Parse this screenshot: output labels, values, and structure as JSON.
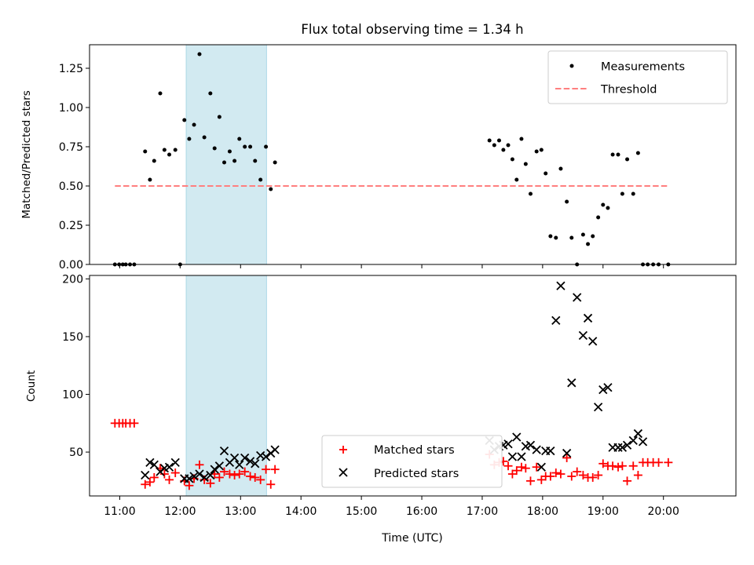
{
  "chart_data": [
    {
      "type": "scatter",
      "title": "Flux total observing time = 1.34 h",
      "xlabel": "",
      "ylabel": "Matched/Predicted stars",
      "xlim": [
        10.5,
        21.2
      ],
      "ylim": [
        0,
        1.4
      ],
      "yticks": [
        0.0,
        0.25,
        0.5,
        0.75,
        1.0,
        1.25
      ],
      "ytick_labels": [
        "0.00",
        "0.25",
        "0.50",
        "0.75",
        "1.00",
        "1.25"
      ],
      "xticks": [
        11,
        12,
        13,
        14,
        15,
        16,
        17,
        18,
        19,
        20
      ],
      "shaded_span": {
        "x": [
          12.1,
          13.43
        ],
        "color": "#add8e6"
      },
      "legend_position": "top-right",
      "legend": [
        "Measurements",
        "Threshold"
      ],
      "threshold": {
        "name": "Threshold",
        "value": 0.5,
        "x": [
          10.92,
          20.08
        ],
        "color": "#ff7f7f"
      },
      "series": [
        {
          "name": "Measurements",
          "marker": "dot",
          "color": "#000000",
          "x": [
            10.92,
            10.99,
            11.05,
            11.1,
            11.17,
            11.24,
            11.42,
            11.5,
            11.57,
            11.67,
            11.74,
            11.82,
            11.92,
            12.0,
            12.07,
            12.15,
            12.23,
            12.32,
            12.4,
            12.5,
            12.57,
            12.65,
            12.73,
            12.82,
            12.9,
            12.98,
            13.07,
            13.16,
            13.24,
            13.33,
            13.42,
            13.5,
            13.57,
            17.12,
            17.2,
            17.28,
            17.35,
            17.43,
            17.5,
            17.57,
            17.65,
            17.72,
            17.8,
            17.9,
            17.98,
            18.05,
            18.13,
            18.22,
            18.3,
            18.4,
            18.48,
            18.57,
            18.67,
            18.75,
            18.83,
            18.92,
            19.0,
            19.08,
            19.16,
            19.25,
            19.32,
            19.4,
            19.5,
            19.58,
            19.66,
            19.74,
            19.83,
            19.92,
            20.08
          ],
          "y": [
            0.0,
            0.0,
            0.0,
            0.0,
            0.0,
            0.0,
            0.72,
            0.54,
            0.66,
            1.09,
            0.73,
            0.7,
            0.73,
            0.0,
            0.92,
            0.8,
            0.89,
            1.34,
            0.81,
            1.09,
            0.74,
            0.94,
            0.65,
            0.72,
            0.66,
            0.8,
            0.75,
            0.75,
            0.66,
            0.54,
            0.75,
            0.48,
            0.65,
            0.79,
            0.76,
            0.79,
            0.73,
            0.76,
            0.67,
            0.54,
            0.8,
            0.64,
            0.45,
            0.72,
            0.73,
            0.58,
            0.18,
            0.17,
            0.61,
            0.4,
            0.17,
            0.0,
            0.19,
            0.13,
            0.18,
            0.3,
            0.38,
            0.36,
            0.7,
            0.7,
            0.45,
            0.67,
            0.45,
            0.71,
            0.0,
            0.0,
            0.0,
            0.0,
            0.0
          ]
        }
      ]
    },
    {
      "type": "scatter",
      "title": "",
      "xlabel": "Time (UTC)",
      "ylabel": "Count",
      "xlim": [
        10.5,
        21.2
      ],
      "ylim": [
        12,
        203
      ],
      "yticks": [
        50,
        100,
        150,
        200
      ],
      "ytick_labels": [
        "50",
        "100",
        "150",
        "200"
      ],
      "xticks": [
        11,
        12,
        13,
        14,
        15,
        16,
        17,
        18,
        19,
        20
      ],
      "xtick_labels": [
        "11:00",
        "12:00",
        "13:00",
        "14:00",
        "15:00",
        "16:00",
        "17:00",
        "18:00",
        "19:00",
        "20:00"
      ],
      "shaded_span": {
        "x": [
          12.1,
          13.43
        ],
        "color": "#add8e6"
      },
      "legend_position": "lower-center",
      "legend": [
        "Matched stars",
        "Predicted stars"
      ],
      "series": [
        {
          "name": "Matched stars",
          "marker": "plus",
          "color": "#ff0000",
          "x": [
            10.92,
            10.99,
            11.05,
            11.1,
            11.17,
            11.24,
            11.42,
            11.5,
            11.57,
            11.67,
            11.74,
            11.82,
            11.92,
            12.07,
            12.15,
            12.23,
            12.32,
            12.4,
            12.5,
            12.57,
            12.65,
            12.73,
            12.82,
            12.9,
            12.98,
            13.07,
            13.16,
            13.24,
            13.33,
            13.42,
            13.5,
            13.57,
            17.12,
            17.2,
            17.28,
            17.35,
            17.43,
            17.5,
            17.57,
            17.65,
            17.72,
            17.8,
            17.9,
            17.98,
            18.05,
            18.13,
            18.22,
            18.3,
            18.4,
            18.48,
            18.57,
            18.67,
            18.75,
            18.83,
            18.92,
            19.0,
            19.08,
            19.16,
            19.25,
            19.32,
            19.4,
            19.5,
            19.58,
            19.66,
            19.74,
            19.83,
            19.92,
            20.08
          ],
          "y": [
            75,
            75,
            75,
            75,
            75,
            75,
            22,
            24,
            28,
            36,
            31,
            26,
            32,
            25,
            21,
            27,
            39,
            26,
            23,
            31,
            28,
            33,
            31,
            30,
            31,
            33,
            29,
            28,
            26,
            35,
            22,
            35,
            48,
            39,
            41,
            42,
            38,
            31,
            34,
            37,
            36,
            25,
            37,
            26,
            29,
            29,
            32,
            31,
            45,
            29,
            33,
            30,
            28,
            28,
            30,
            40,
            38,
            38,
            37,
            38,
            25,
            38,
            30,
            41,
            41,
            41,
            41,
            41
          ]
        },
        {
          "name": "Predicted stars",
          "marker": "x",
          "color": "#000000",
          "x": [
            11.42,
            11.5,
            11.57,
            11.67,
            11.74,
            11.82,
            11.92,
            12.07,
            12.15,
            12.23,
            12.32,
            12.4,
            12.5,
            12.57,
            12.65,
            12.73,
            12.82,
            12.9,
            12.98,
            13.07,
            13.16,
            13.24,
            13.33,
            13.42,
            13.5,
            13.57,
            17.12,
            17.2,
            17.28,
            17.35,
            17.43,
            17.5,
            17.57,
            17.65,
            17.72,
            17.8,
            17.9,
            17.98,
            18.05,
            18.13,
            18.22,
            18.3,
            18.4,
            18.48,
            18.57,
            18.67,
            18.75,
            18.83,
            18.92,
            19.0,
            19.08,
            19.16,
            19.25,
            19.32,
            19.4,
            19.5,
            19.58,
            19.66
          ],
          "y": [
            30,
            41,
            39,
            33,
            36,
            37,
            41,
            27,
            27,
            29,
            31,
            28,
            30,
            35,
            38,
            51,
            41,
            45,
            39,
            45,
            42,
            40,
            47,
            46,
            49,
            52,
            60,
            52,
            55,
            56,
            57,
            46,
            63,
            46,
            55,
            56,
            52,
            37,
            51,
            51,
            164,
            194,
            49,
            110,
            184,
            151,
            166,
            146,
            89,
            104,
            106,
            54,
            54,
            54,
            56,
            60,
            66,
            59
          ]
        }
      ]
    }
  ]
}
